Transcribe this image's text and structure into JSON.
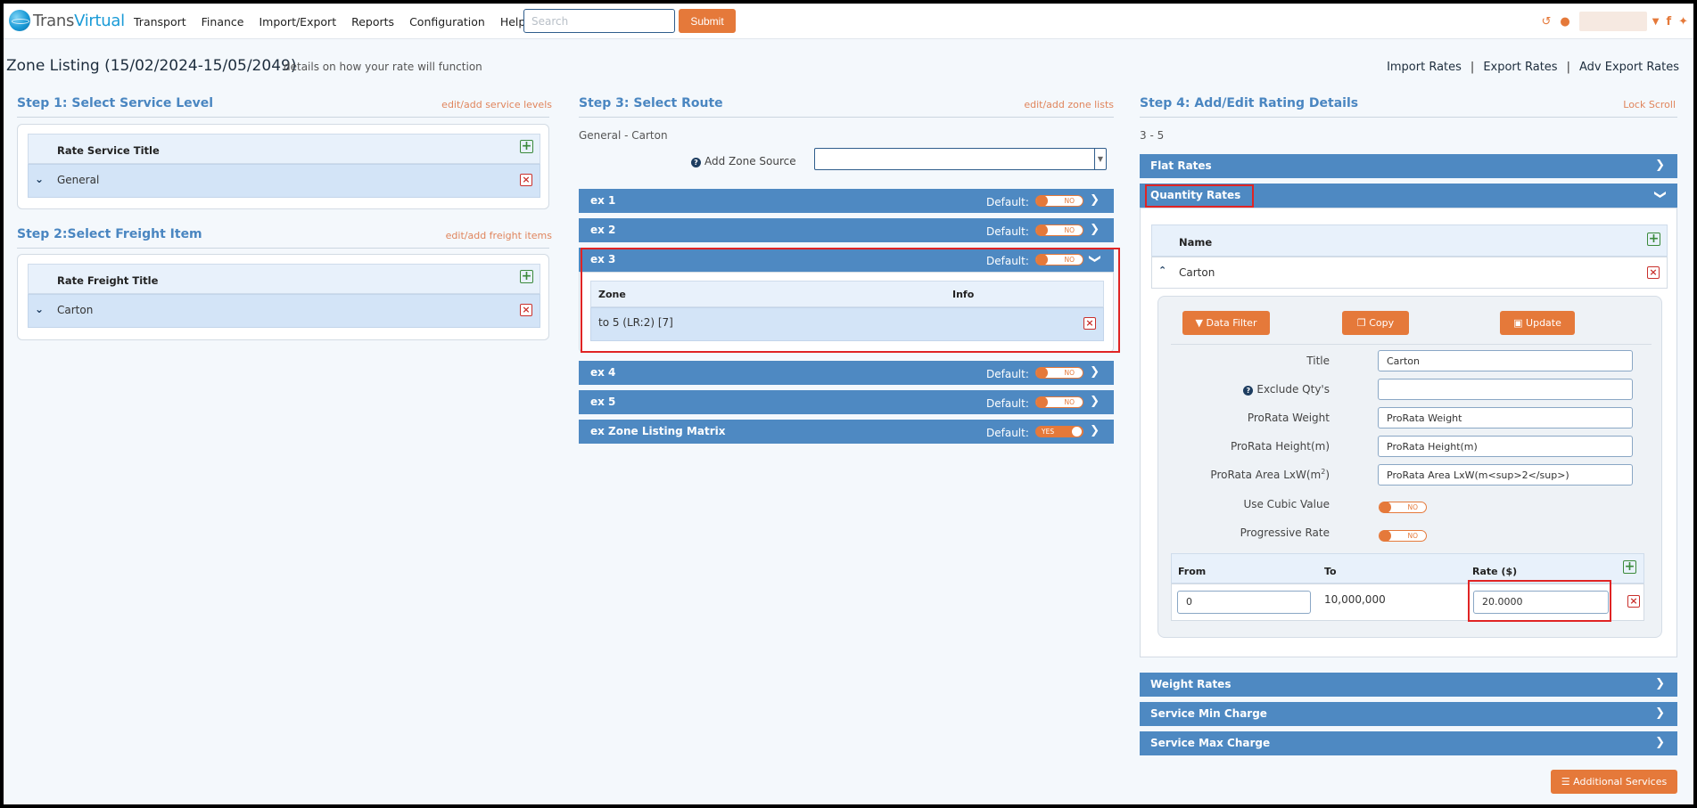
{
  "nav": {
    "brand_a": "Trans",
    "brand_b": "Virtual",
    "items": [
      "Transport",
      "Finance",
      "Import/Export",
      "Reports",
      "Configuration",
      "Help"
    ],
    "search_placeholder": "Search",
    "submit": "Submit"
  },
  "header": {
    "title": "Zone Listing (15/02/2024-15/05/2049)",
    "subtitle": "details on how your rate will function",
    "links": [
      "Import Rates",
      "Export Rates",
      "Adv Export Rates"
    ]
  },
  "step1": {
    "title": "Step 1: Select Service Level",
    "link": "edit/add service levels",
    "column": "Rate Service Title",
    "row": "General"
  },
  "step2": {
    "title": "Step 2:Select Freight Item",
    "link": "edit/add freight items",
    "column": "Rate Freight Title",
    "row": "Carton"
  },
  "step3": {
    "title": "Step 3: Select Route",
    "link": "edit/add zone lists",
    "route_label": "General - Carton",
    "add_zone_source": "Add Zone Source",
    "default_label": "Default:",
    "routes": [
      {
        "name": "ex 1",
        "toggle": "NO"
      },
      {
        "name": "ex 2",
        "toggle": "NO"
      },
      {
        "name": "ex 3",
        "toggle": "NO"
      },
      {
        "name": "ex 4",
        "toggle": "NO"
      },
      {
        "name": "ex 5",
        "toggle": "NO"
      },
      {
        "name": "ex Zone Listing Matrix",
        "toggle": "YES"
      }
    ],
    "zone_table": {
      "headers": [
        "Zone",
        "Info"
      ],
      "row": "to 5 (LR:2) [7]"
    }
  },
  "step4": {
    "title": "Step 4: Add/Edit Rating Details",
    "link": "Lock Scroll",
    "range_label": "3 - 5",
    "accordions": {
      "flat": "Flat Rates",
      "quantity": "Quantity Rates",
      "weight": "Weight Rates",
      "min": "Service Min Charge",
      "max": "Service Max Charge"
    },
    "name_header": "Name",
    "name_row": "Carton",
    "buttons": {
      "data_filter": "Data Filter",
      "copy": "Copy",
      "update": "Update"
    },
    "form": {
      "title_label": "Title",
      "title_value": "Carton",
      "exclude_label": "Exclude Qty's",
      "exclude_value": "",
      "weight_label": "ProRata Weight",
      "weight_value": "ProRata Weight",
      "height_label": "ProRata Height(m)",
      "height_value": "ProRata Height(m)",
      "area_label": "ProRata Area LxW(m",
      "area_sup": "2",
      "area_label_end": ")",
      "area_value": "ProRata Area LxW(m<sup>2</sup>)",
      "cubic_label": "Use Cubic Value",
      "cubic_toggle": "NO",
      "progressive_label": "Progressive Rate",
      "progressive_toggle": "NO"
    },
    "rate_table": {
      "headers": [
        "From",
        "To",
        "Rate ($)"
      ],
      "from": "0",
      "to": "10,000,000",
      "rate": "20.0000"
    },
    "additional_services": "Additional Services"
  }
}
